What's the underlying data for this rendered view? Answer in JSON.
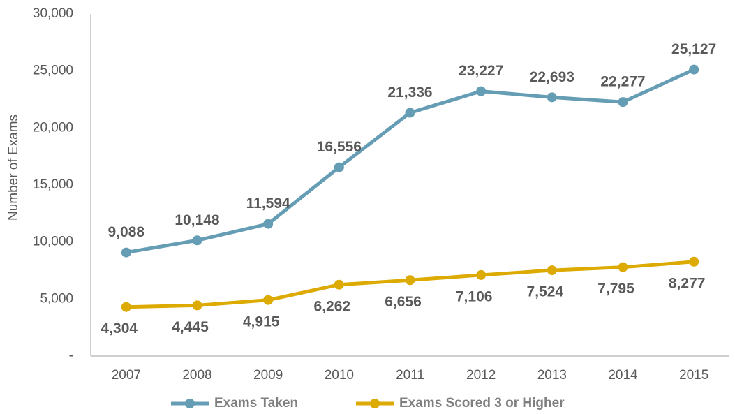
{
  "chart_data": {
    "type": "line",
    "y_label": "Number of Exams",
    "categories": [
      "2007",
      "2008",
      "2009",
      "2010",
      "2011",
      "2012",
      "2013",
      "2014",
      "2015"
    ],
    "series": [
      {
        "name": "Exams Taken",
        "color": "#659db4",
        "values": [
          9088,
          10148,
          11594,
          16556,
          21336,
          23227,
          22693,
          22277,
          25127
        ],
        "value_labels": [
          "9,088",
          "10,148",
          "11,594",
          "16,556",
          "21,336",
          "23,227",
          "22,693",
          "22,277",
          "25,127"
        ]
      },
      {
        "name": "Exams Scored 3 or Higher",
        "color": "#dcaa00",
        "values": [
          4304,
          4445,
          4915,
          6262,
          6656,
          7106,
          7524,
          7795,
          8277
        ],
        "value_labels": [
          "4,304",
          "4,445",
          "4,915",
          "6,262",
          "6,656",
          "7,106",
          "7,524",
          "7,795",
          "8,277"
        ]
      }
    ],
    "ylim": [
      0,
      30000
    ],
    "yticks": [
      {
        "value": 0,
        "label": "-"
      },
      {
        "value": 5000,
        "label": "5,000"
      },
      {
        "value": 10000,
        "label": "10,000"
      },
      {
        "value": 15000,
        "label": "15,000"
      },
      {
        "value": 20000,
        "label": "20,000"
      },
      {
        "value": 25000,
        "label": "25,000"
      },
      {
        "value": 30000,
        "label": "30,000"
      }
    ],
    "grid": false,
    "legend": "bottom"
  }
}
